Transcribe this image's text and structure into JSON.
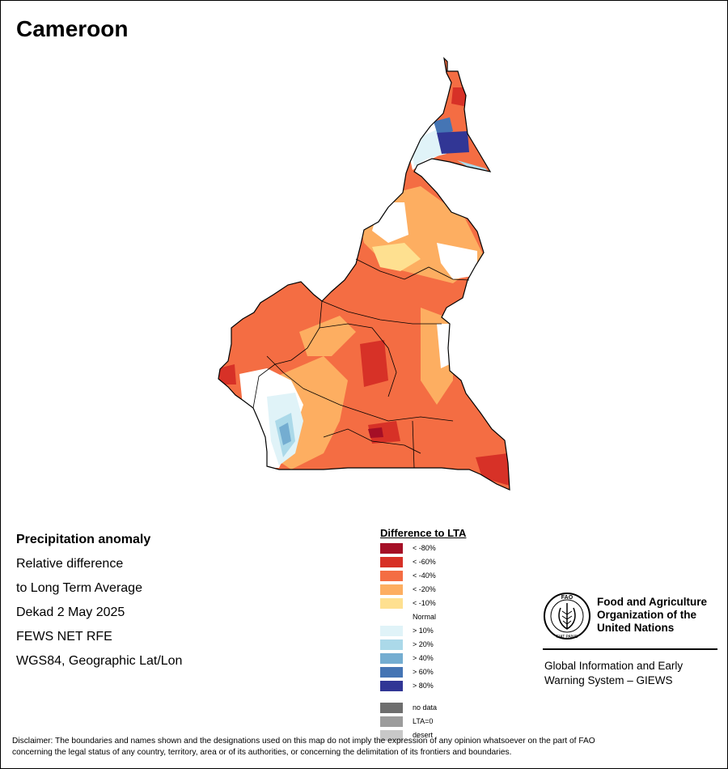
{
  "map": {
    "title": "Cameroon",
    "colors": {
      "lt_minus_80": "#a50f26",
      "lt_minus_60": "#d73127",
      "lt_minus_40": "#f46d43",
      "lt_minus_20": "#fdae61",
      "lt_minus_10": "#fee090",
      "normal": "#ffffff",
      "gt_10": "#e0f3f8",
      "gt_20": "#abd9e9",
      "gt_40": "#74add1",
      "gt_60": "#4575b4",
      "gt_80": "#313695",
      "no_data": "#6e6e6e",
      "lta_zero": "#9c9c9c",
      "desert": "#c8c8c8",
      "border": "#000000"
    }
  },
  "info": {
    "heading": "Precipitation anomaly",
    "line1": "Relative difference",
    "line2": "to Long Term Average",
    "line3": "Dekad 2 May 2025",
    "line4": "FEWS NET RFE",
    "line5": "WGS84, Geographic Lat/Lon"
  },
  "legend": {
    "title": "Difference to LTA",
    "items": [
      {
        "label": "< -80%",
        "color": "#a50f26"
      },
      {
        "label": "< -60%",
        "color": "#d73127"
      },
      {
        "label": "< -40%",
        "color": "#f46d43"
      },
      {
        "label": "< -20%",
        "color": "#fdae61"
      },
      {
        "label": "< -10%",
        "color": "#fee090"
      },
      {
        "label": "Normal",
        "color": "#ffffff"
      },
      {
        "label": "> 10%",
        "color": "#e0f3f8"
      },
      {
        "label": "> 20%",
        "color": "#abd9e9"
      },
      {
        "label": "> 40%",
        "color": "#74add1"
      },
      {
        "label": "> 60%",
        "color": "#4575b4"
      },
      {
        "label": "> 80%",
        "color": "#313695"
      }
    ],
    "extra": [
      {
        "label": "no data",
        "color": "#6e6e6e"
      },
      {
        "label": "LTA=0",
        "color": "#9c9c9c"
      },
      {
        "label": "desert",
        "color": "#c8c8c8"
      }
    ]
  },
  "fao": {
    "logo_text": "FAO",
    "logo_motto": "FIAT PANIS",
    "org_name": "Food and Agriculture Organization of the United Nations",
    "giews_line1": "Global Information and Early",
    "giews_line2": "Warning System – GIEWS"
  },
  "disclaimer": {
    "line1": "Disclaimer: The boundaries and names shown and the designations used on this map do not imply the expression of any opinion whatsoever on the part of FAO",
    "line2": "concerning the legal status of any country, territory, area or of its authorities, or concerning the delimitation of its frontiers and boundaries."
  }
}
